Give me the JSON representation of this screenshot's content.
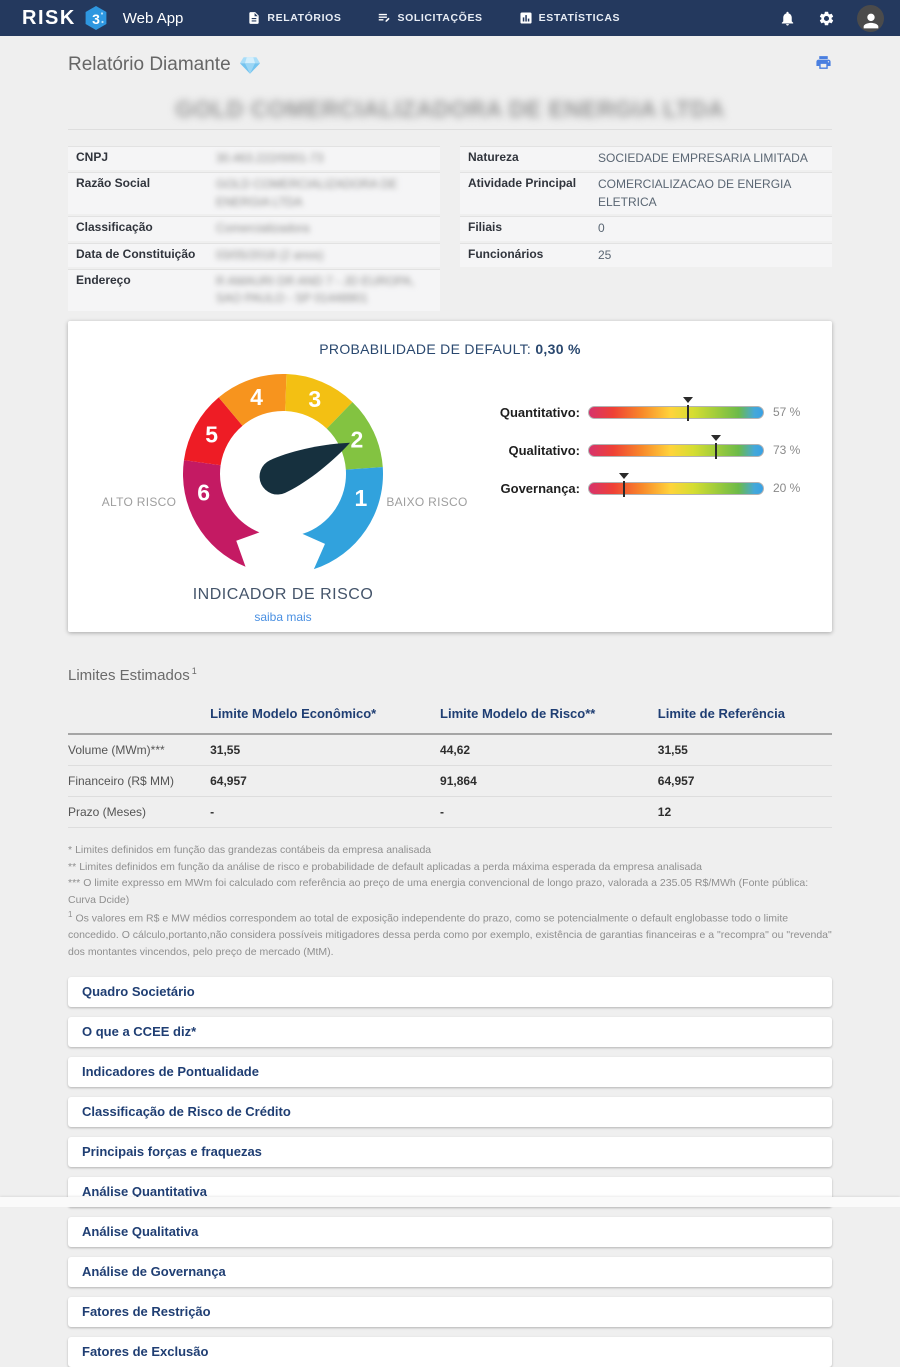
{
  "colors": {
    "navbar_bg": "#24395e",
    "navy_accent": "#1f3e73",
    "link_blue": "#4a90e2",
    "print_blue": "#4a7fe0",
    "page_bg": "#efefef"
  },
  "navbar": {
    "brand": "RISK",
    "brand_badge": "3",
    "app_title": "Web App",
    "items": [
      {
        "label": "RELATÓRIOS",
        "icon": "report-icon"
      },
      {
        "label": "SOLICITAÇÕES",
        "icon": "requests-icon"
      },
      {
        "label": "ESTATÍSTICAS",
        "icon": "statistics-icon"
      }
    ],
    "action_icons": [
      "notifications-icon",
      "settings-icon",
      "user-avatar"
    ]
  },
  "page": {
    "title": "Relatório Diamante",
    "company_name": "GOLD COMERCIALIZADORA DE ENERGIA LTDA"
  },
  "company_info": {
    "left": [
      {
        "label": "CNPJ",
        "value": "30.463.222/0001-73",
        "redacted": true
      },
      {
        "label": "Razão Social",
        "value": "GOLD COMERCIALIZADORA DE ENERGIA LTDA",
        "redacted": true
      },
      {
        "label": "Classificação",
        "value": "Comercializadora",
        "redacted": true
      },
      {
        "label": "Data de Constituição",
        "value": "03/05/2018 (2 anos)",
        "redacted": true
      },
      {
        "label": "Endereço",
        "value": "R AMAURI DR AND 7 - JD EUROPA, SAO PAULO - SP 01448901",
        "redacted": true
      }
    ],
    "right": [
      {
        "label": "Natureza",
        "value": "SOCIEDADE EMPRESARIA LIMITADA"
      },
      {
        "label": "Atividade Principal",
        "value": "COMERCIALIZACAO DE ENERGIA ELETRICA"
      },
      {
        "label": "Filiais",
        "value": "0"
      },
      {
        "label": "Funcionários",
        "value": "25"
      }
    ]
  },
  "risk_panel": {
    "default_label": "PROBABILIDADE DE DEFAULT:",
    "default_value": "0,30 %",
    "gauge": {
      "segments": [
        {
          "label": "1",
          "color": "#31a2dd"
        },
        {
          "label": "2",
          "color": "#83c341"
        },
        {
          "label": "3",
          "color": "#f3c013"
        },
        {
          "label": "4",
          "color": "#f7941e"
        },
        {
          "label": "5",
          "color": "#ee1c25"
        },
        {
          "label": "6",
          "color": "#c41a63"
        }
      ],
      "needle_points_to": "2",
      "needle_angle": 65,
      "needle_color": "#16303e",
      "left_label": "ALTO RISCO",
      "right_label": "BAIXO RISCO",
      "caption": "INDICADOR DE RISCO",
      "link_label": "saiba mais"
    },
    "bars": [
      {
        "label": "Quantitativo:",
        "value": 57,
        "display": "57 %"
      },
      {
        "label": "Qualitativo:",
        "value": 73,
        "display": "73 %"
      },
      {
        "label": "Governança:",
        "value": 20,
        "display": "20 %"
      }
    ]
  },
  "limits": {
    "heading": "Limites Estimados",
    "heading_sup": "1",
    "columns": [
      "Limite Modelo Econômico*",
      "Limite Modelo de Risco**",
      "Limite de Referência"
    ],
    "rows": [
      {
        "label": "Volume (MWm)***",
        "values": [
          "31,55",
          "44,62",
          "31,55"
        ]
      },
      {
        "label": "Financeiro (R$ MM)",
        "values": [
          "64,957",
          "91,864",
          "64,957"
        ]
      },
      {
        "label": "Prazo (Meses)",
        "values": [
          "-",
          "-",
          "12"
        ]
      }
    ],
    "footnotes": [
      {
        "marker": "*",
        "text": "Limites definidos em função das grandezas contábeis da empresa analisada"
      },
      {
        "marker": "**",
        "text": "Limites definidos em função da análise de risco e probabilidade de default aplicadas a perda máxima esperada da empresa analisada"
      },
      {
        "marker": "***",
        "text": "O limite expresso em MWm foi calculado com referência ao preço de uma energia convencional de longo prazo, valorada a 235.05 R$/MWh (Fonte pública: Curva Dcide)"
      },
      {
        "marker": "1",
        "text": "Os valores em R$ e MW médios correspondem ao total de exposição independente do prazo, como se potencialmente o default englobasse todo o limite concedido. O cálculo,portanto,não considera possíveis mitigadores dessa perda como por exemplo, existência de garantias financeiras e a \"recompra\" ou \"revenda\" dos montantes vincendos, pelo preço de mercado (MtM)."
      }
    ]
  },
  "accordions": [
    "Quadro Societário",
    "O que a CCEE diz*",
    "Indicadores de Pontualidade",
    "Classificação de Risco de Crédito",
    "Principais forças e fraquezas",
    "Análise Quantitativa",
    "Análise Qualitativa",
    "Análise de Governança",
    "Fatores de Restrição",
    "Fatores de Exclusão"
  ]
}
